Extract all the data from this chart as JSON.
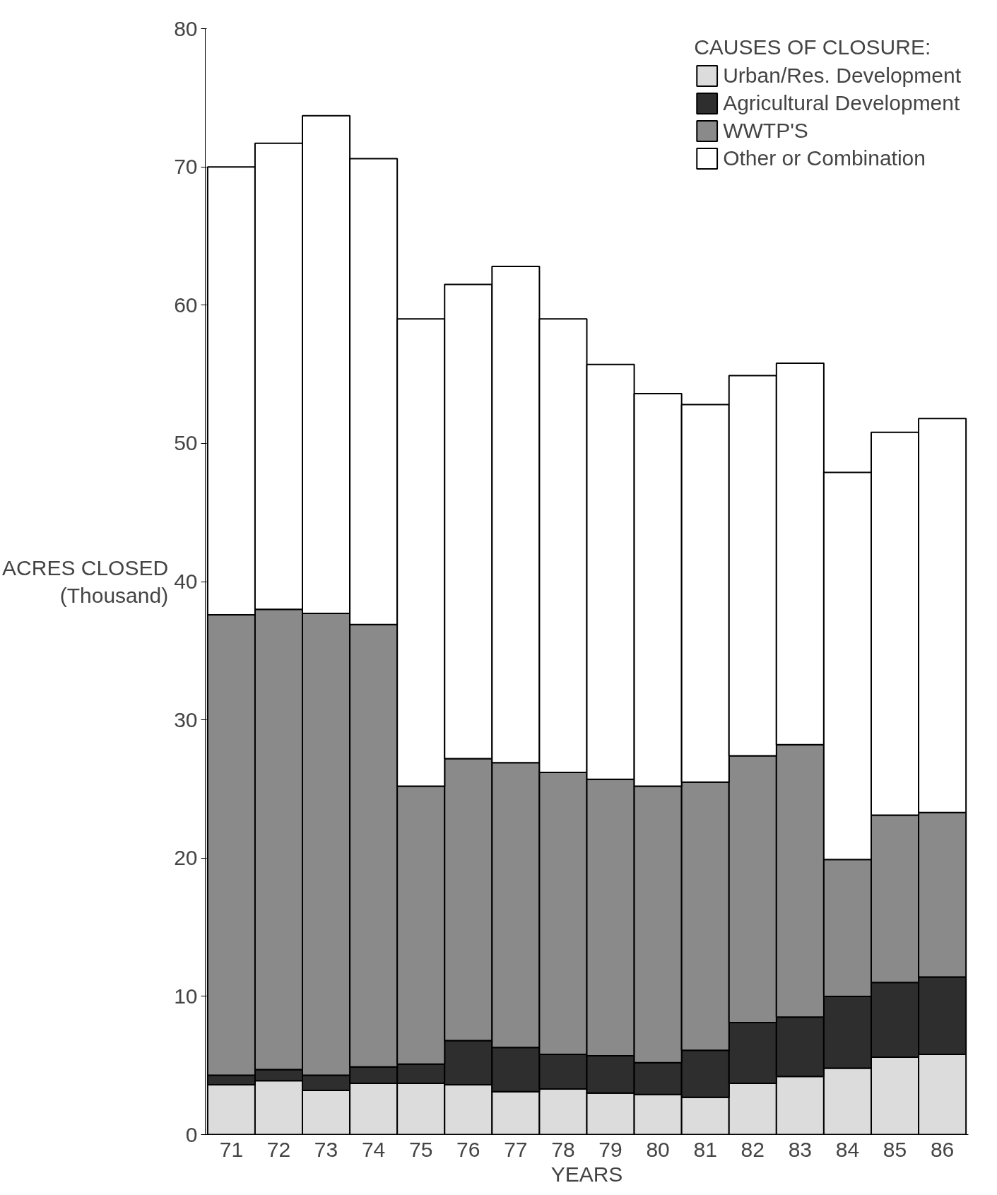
{
  "chart_data": {
    "type": "bar",
    "stacked": true,
    "xlabel": "YEARS",
    "ylabel": "ACRES CLOSED\n(Thousand)",
    "legend_title": "CAUSES OF CLOSURE:",
    "categories": [
      "71",
      "72",
      "73",
      "74",
      "75",
      "76",
      "77",
      "78",
      "79",
      "80",
      "81",
      "82",
      "83",
      "84",
      "85",
      "86"
    ],
    "series": [
      {
        "name": "Urban/Res. Development",
        "color": "#dcdcdc",
        "values": [
          3.6,
          3.9,
          3.2,
          3.7,
          3.7,
          3.6,
          3.1,
          3.3,
          3.0,
          2.9,
          2.7,
          3.7,
          4.2,
          4.8,
          5.6,
          5.8
        ]
      },
      {
        "name": "Agricultural Development",
        "color": "#2e2e2e",
        "values": [
          0.7,
          0.8,
          1.1,
          1.2,
          1.4,
          3.2,
          3.2,
          2.5,
          2.7,
          2.3,
          3.4,
          4.4,
          4.3,
          5.2,
          5.4,
          5.6
        ]
      },
      {
        "name": "WWTP'S",
        "color": "#8a8a8a",
        "values": [
          33.3,
          33.3,
          33.4,
          32.0,
          20.1,
          20.4,
          20.6,
          20.4,
          20.0,
          20.0,
          19.4,
          19.3,
          19.7,
          9.9,
          12.1,
          11.9
        ]
      },
      {
        "name": "Other or Combination",
        "color": "#ffffff",
        "values": [
          32.4,
          33.7,
          36.0,
          33.7,
          33.8,
          34.3,
          35.9,
          32.8,
          30.0,
          28.4,
          27.3,
          27.5,
          27.6,
          28.0,
          27.7,
          28.5
        ]
      }
    ],
    "ylim": [
      0,
      80
    ],
    "yticks": [
      0,
      10,
      20,
      30,
      40,
      50,
      60,
      70,
      80
    ],
    "grid": false,
    "legend": "top right"
  }
}
